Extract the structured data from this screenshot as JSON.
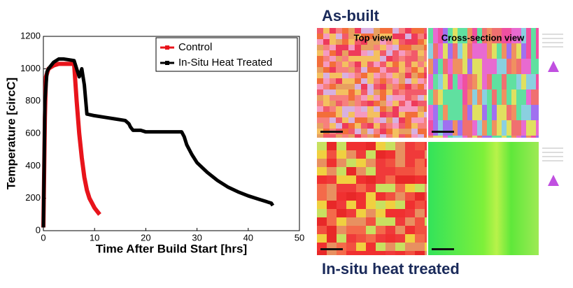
{
  "chart_data": {
    "type": "line",
    "xlabel": "Time After Build Start [hrs]",
    "ylabel": "Temperature [circC]",
    "xlim": [
      0,
      50
    ],
    "xticks": [
      0,
      10,
      20,
      30,
      40,
      50
    ],
    "ylim": [
      0,
      1200
    ],
    "yticks": [
      0,
      200,
      400,
      600,
      800,
      1000,
      1200
    ],
    "legend": "upper right",
    "series": [
      {
        "name": "Control",
        "color": "#e8141b",
        "x": [
          0,
          0.3,
          0.5,
          1,
          1.5,
          2,
          3,
          4,
          5,
          6,
          6.5,
          7,
          7.5,
          8,
          8.5,
          9,
          10,
          11
        ],
        "values": [
          20,
          700,
          950,
          1000,
          1010,
          1020,
          1030,
          1030,
          1030,
          1030,
          800,
          600,
          450,
          330,
          250,
          200,
          140,
          100
        ]
      },
      {
        "name": "In-Situ Heat Treated",
        "color": "#000000",
        "x": [
          0,
          0.3,
          0.7,
          1,
          2,
          3,
          4,
          5,
          6,
          6.5,
          7,
          7.5,
          8,
          8.5,
          10,
          12,
          14,
          16,
          16.7,
          17,
          17.5,
          19,
          20,
          22,
          25,
          27,
          27.5,
          28,
          29,
          30,
          32,
          34,
          36,
          38,
          40,
          42,
          44,
          44.5,
          44.8
        ],
        "values": [
          20,
          800,
          980,
          1000,
          1040,
          1060,
          1060,
          1055,
          1050,
          1000,
          950,
          1000,
          900,
          720,
          710,
          700,
          690,
          680,
          660,
          640,
          620,
          620,
          610,
          610,
          610,
          610,
          580,
          530,
          470,
          420,
          360,
          310,
          270,
          240,
          215,
          195,
          175,
          170,
          155
        ]
      }
    ]
  },
  "ebsd": {
    "top_title": "As-built",
    "bottom_title": "In-situ heat treated",
    "columns": [
      "Top view",
      "Cross-section view"
    ]
  }
}
